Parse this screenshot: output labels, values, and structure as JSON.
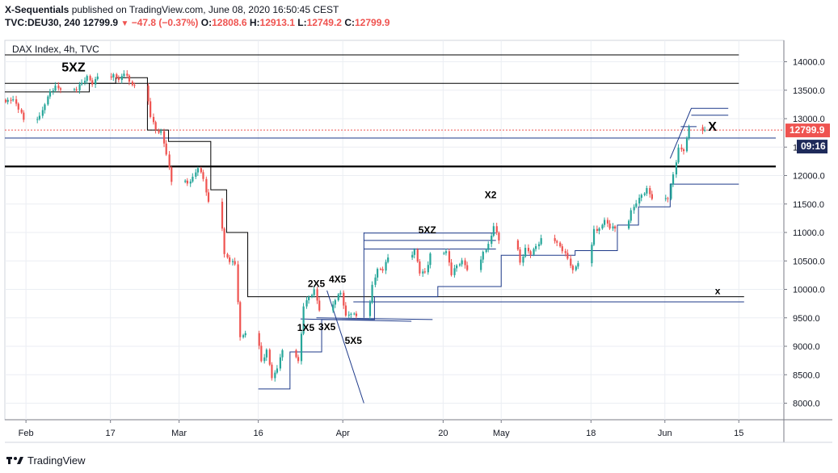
{
  "header": {
    "author": "X-Sequentials",
    "published_text": "published on TradingView.com, June 08, 2020 16:50:45 CEST",
    "symbol": "TVC:DEU30, 240",
    "last": "12799.9",
    "change": "−47.8 (−0.37%)",
    "o_label": "O:",
    "o": "12808.6",
    "h_label": "H:",
    "h": "12913.1",
    "l_label": "L:",
    "l": "12749.2",
    "c_label": "C:",
    "c": "12799.9"
  },
  "footer": {
    "brand": "TradingView",
    "logo_icon": "tradingview-logo-icon"
  },
  "colors": {
    "up": "#26a69a",
    "down": "#ef5350",
    "black_line": "#000000",
    "blue_line": "#1e3a8a",
    "grid": "#ebeef3",
    "axis_text": "#131722",
    "price_tag": "#ef5350",
    "time_tag": "#1e2a5a"
  },
  "chart_data": {
    "type": "candlestick",
    "title": "DAX Index, 4h, TVC",
    "ylim": [
      7700,
      14500
    ],
    "y_ticks": [
      8000,
      8500,
      9000,
      9500,
      10000,
      10500,
      11000,
      11500,
      12000,
      12500,
      13000,
      13500,
      14000
    ],
    "y_tick_labels": [
      "8000.0",
      "8500.0",
      "9000.0",
      "9500.0",
      "10000.0",
      "10500.0",
      "11000.0",
      "11500.0",
      "12000.0",
      "12500.0",
      "13000.0",
      "13500.0",
      "14000.0"
    ],
    "x_range": [
      "2020-01-28",
      "2020-06-22"
    ],
    "x_ticks": [
      "2020-02-01",
      "2020-02-17",
      "2020-03-01",
      "2020-03-16",
      "2020-04-01",
      "2020-04-20",
      "2020-05-01",
      "2020-05-18",
      "2020-06-01",
      "2020-06-15"
    ],
    "x_tick_labels": [
      "Feb",
      "17",
      "Mar",
      "16",
      "Apr",
      "20",
      "May",
      "18",
      "Jun",
      "15"
    ],
    "last_price": 12799.9,
    "last_price_label": "12799.9",
    "countdown_label": "09:16",
    "daily_closes": [
      [
        "2020-01-28",
        13330
      ],
      [
        "2020-01-29",
        13340
      ],
      [
        "2020-01-30",
        13160
      ],
      [
        "2020-01-31",
        12980
      ],
      [
        "2020-02-03",
        13050
      ],
      [
        "2020-02-04",
        13250
      ],
      [
        "2020-02-05",
        13480
      ],
      [
        "2020-02-06",
        13580
      ],
      [
        "2020-02-07",
        13510
      ],
      [
        "2020-02-10",
        13500
      ],
      [
        "2020-02-11",
        13630
      ],
      [
        "2020-02-12",
        13750
      ],
      [
        "2020-02-13",
        13600
      ],
      [
        "2020-02-14",
        13740
      ],
      [
        "2020-02-17",
        13780
      ],
      [
        "2020-02-18",
        13680
      ],
      [
        "2020-02-19",
        13790
      ],
      [
        "2020-02-20",
        13650
      ],
      [
        "2020-02-21",
        13580
      ],
      [
        "2020-02-24",
        13030
      ],
      [
        "2020-02-25",
        12800
      ],
      [
        "2020-02-26",
        12780
      ],
      [
        "2020-02-27",
        12370
      ],
      [
        "2020-02-28",
        11890
      ],
      [
        "2020-03-02",
        11860
      ],
      [
        "2020-03-03",
        11980
      ],
      [
        "2020-03-04",
        12130
      ],
      [
        "2020-03-05",
        11940
      ],
      [
        "2020-03-06",
        11540
      ],
      [
        "2020-03-09",
        10620
      ],
      [
        "2020-03-10",
        10480
      ],
      [
        "2020-03-11",
        10440
      ],
      [
        "2020-03-12",
        9160
      ],
      [
        "2020-03-13",
        9230
      ],
      [
        "2020-03-16",
        8740
      ],
      [
        "2020-03-17",
        8940
      ],
      [
        "2020-03-18",
        8440
      ],
      [
        "2020-03-19",
        8610
      ],
      [
        "2020-03-20",
        8930
      ],
      [
        "2020-03-23",
        8740
      ],
      [
        "2020-03-24",
        9700
      ],
      [
        "2020-03-25",
        9870
      ],
      [
        "2020-03-26",
        10000
      ],
      [
        "2020-03-27",
        9630
      ],
      [
        "2020-03-30",
        9810
      ],
      [
        "2020-03-31",
        9940
      ],
      [
        "2020-04-01",
        9540
      ],
      [
        "2020-04-02",
        9570
      ],
      [
        "2020-04-03",
        9530
      ],
      [
        "2020-04-06",
        10080
      ],
      [
        "2020-04-07",
        10360
      ],
      [
        "2020-04-08",
        10330
      ],
      [
        "2020-04-09",
        10560
      ],
      [
        "2020-04-14",
        10700
      ],
      [
        "2020-04-15",
        10280
      ],
      [
        "2020-04-16",
        10300
      ],
      [
        "2020-04-17",
        10630
      ],
      [
        "2020-04-20",
        10670
      ],
      [
        "2020-04-21",
        10250
      ],
      [
        "2020-04-22",
        10420
      ],
      [
        "2020-04-23",
        10510
      ],
      [
        "2020-04-24",
        10340
      ],
      [
        "2020-04-27",
        10660
      ],
      [
        "2020-04-28",
        10800
      ],
      [
        "2020-04-29",
        11110
      ],
      [
        "2020-04-30",
        10860
      ],
      [
        "2020-05-04",
        10470
      ],
      [
        "2020-05-05",
        10730
      ],
      [
        "2020-05-06",
        10610
      ],
      [
        "2020-05-07",
        10760
      ],
      [
        "2020-05-08",
        10900
      ],
      [
        "2020-05-11",
        10820
      ],
      [
        "2020-05-12",
        10670
      ],
      [
        "2020-05-13",
        10540
      ],
      [
        "2020-05-14",
        10340
      ],
      [
        "2020-05-15",
        10460
      ],
      [
        "2020-05-18",
        11060
      ],
      [
        "2020-05-19",
        11070
      ],
      [
        "2020-05-20",
        11220
      ],
      [
        "2020-05-21",
        11070
      ],
      [
        "2020-05-22",
        11070
      ],
      [
        "2020-05-25",
        11390
      ],
      [
        "2020-05-26",
        11510
      ],
      [
        "2020-05-27",
        11660
      ],
      [
        "2020-05-28",
        11780
      ],
      [
        "2020-05-29",
        11590
      ],
      [
        "2020-06-01",
        11590
      ],
      [
        "2020-06-02",
        12020
      ],
      [
        "2020-06-03",
        12490
      ],
      [
        "2020-06-04",
        12430
      ],
      [
        "2020-06-05",
        12850
      ],
      [
        "2020-06-08",
        12800
      ]
    ],
    "horizontal_levels": [
      {
        "price": 14120,
        "from": "2020-01-28",
        "to": "2020-06-15",
        "color": "black"
      },
      {
        "price": 13620,
        "from": "2020-01-28",
        "to": "2020-06-15",
        "color": "black"
      },
      {
        "price": 12660,
        "from": "2020-01-28",
        "to": "2020-06-22",
        "color": "blue"
      },
      {
        "price": 12160,
        "from": "2020-01-28",
        "to": "2020-06-22",
        "color": "black",
        "bold": true
      }
    ],
    "tdst_lines": [
      {
        "label": "5XZ",
        "price": 13790,
        "from": "2020-02-08",
        "to": "2020-02-27"
      },
      {
        "label": "x",
        "price": 9870,
        "from": "2020-03-16",
        "to": "2020-06-16"
      },
      {
        "label": "X",
        "price": 12790,
        "from": "",
        "to": ""
      },
      {
        "label": "2X5",
        "price": 10000,
        "from": "",
        "to": ""
      },
      {
        "label": "4X5",
        "price": 10080,
        "from": "",
        "to": ""
      },
      {
        "label": "1X5",
        "price": 9230,
        "from": "",
        "to": ""
      },
      {
        "label": "3X5",
        "price": 9240,
        "from": "",
        "to": ""
      },
      {
        "label": "5X5",
        "price": 9000,
        "from": "",
        "to": ""
      },
      {
        "label": "5XZ",
        "price": 10940,
        "from": "",
        "to": ""
      },
      {
        "label": "X2",
        "price": 11560,
        "from": "",
        "to": ""
      }
    ]
  }
}
